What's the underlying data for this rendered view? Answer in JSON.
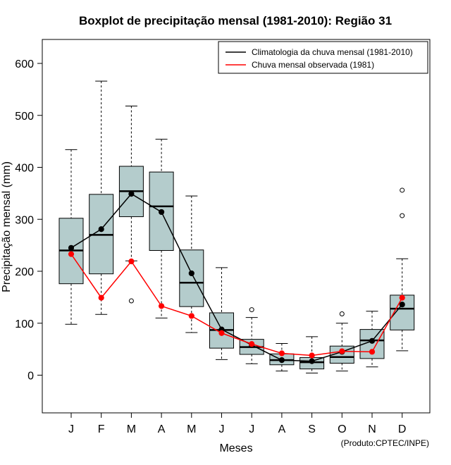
{
  "chart_data": {
    "type": "boxplot",
    "title": "Boxplot de precipitação mensal (1981-2010): Região 31",
    "xlabel": "Meses",
    "ylabel": "Precipitação mensal (mm)",
    "credit": "(Produto:CPTEC/INPE)",
    "ylim": [
      -75,
      640
    ],
    "yticks": [
      0,
      100,
      200,
      300,
      400,
      500,
      600
    ],
    "categories": [
      "J",
      "F",
      "M",
      "A",
      "M",
      "J",
      "J",
      "A",
      "S",
      "O",
      "N",
      "D"
    ],
    "boxes": [
      {
        "min": 98,
        "q1": 176,
        "median": 240,
        "q3": 302,
        "max": 434,
        "outliers": []
      },
      {
        "min": 117,
        "q1": 195,
        "median": 270,
        "q3": 348,
        "max": 566,
        "outliers": []
      },
      {
        "min": 220,
        "q1": 305,
        "median": 354,
        "q3": 402,
        "max": 518,
        "outliers": [
          143
        ]
      },
      {
        "min": 110,
        "q1": 240,
        "median": 325,
        "q3": 391,
        "max": 454,
        "outliers": []
      },
      {
        "min": 82,
        "q1": 132,
        "median": 178,
        "q3": 241,
        "max": 345,
        "outliers": []
      },
      {
        "min": 30,
        "q1": 52,
        "median": 87,
        "q3": 120,
        "max": 207,
        "outliers": []
      },
      {
        "min": 22,
        "q1": 40,
        "median": 54,
        "q3": 69,
        "max": 111,
        "outliers": [
          126
        ]
      },
      {
        "min": 8,
        "q1": 20,
        "median": 29,
        "q3": 41,
        "max": 61,
        "outliers": []
      },
      {
        "min": 4,
        "q1": 12,
        "median": 25,
        "q3": 34,
        "max": 74,
        "outliers": []
      },
      {
        "min": 8,
        "q1": 23,
        "median": 35,
        "q3": 56,
        "max": 100,
        "outliers": [
          118
        ]
      },
      {
        "min": 16,
        "q1": 32,
        "median": 67,
        "q3": 88,
        "max": 123,
        "outliers": []
      },
      {
        "min": 47,
        "q1": 87,
        "median": 128,
        "q3": 154,
        "max": 224,
        "outliers": [
          307,
          356
        ]
      }
    ],
    "series": [
      {
        "name": "Climatologia da chuva mensal (1981-2010)",
        "color": "#000000",
        "values": [
          245,
          281,
          349,
          314,
          196,
          88,
          58,
          29,
          27,
          45,
          66,
          136
        ]
      },
      {
        "name": "Chuva mensal observada (1981)",
        "color": "#ff0000",
        "values": [
          233,
          149,
          219,
          133,
          114,
          81,
          60,
          42,
          38,
          46,
          45,
          149
        ]
      }
    ],
    "box_color": "#b4cccc",
    "legend_position": "top-right"
  }
}
